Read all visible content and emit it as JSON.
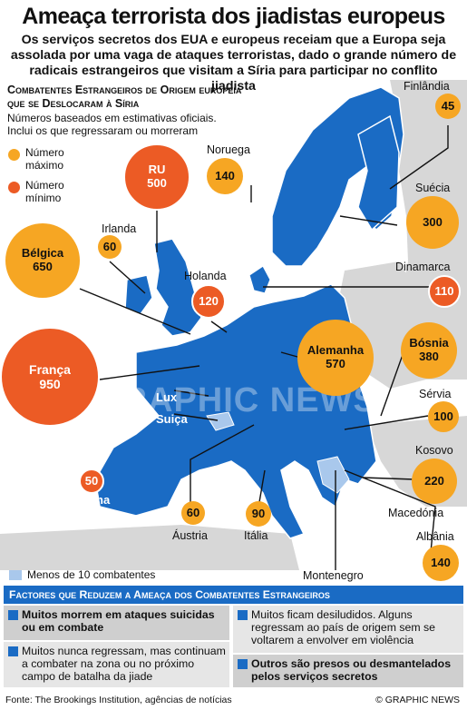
{
  "title": "Ameaça terrorista dos jiadistas europeus",
  "subtitle": "Os serviços secretos dos EUA e europeus receiam que a Europa seja assolada por uma vaga de ataques terroristas, dado o grande número de radicais estrangeiros que visitam a Síria para participar no conflito jiadista",
  "map": {
    "heading_line1": "Combatentes Estrangeiros de Origem europeia",
    "heading_line2": "que se Deslocaram à Síria",
    "note_line1": "Números baseados em estimativas oficiais.",
    "note_line2": "Inclui os que regressaram ou morreram",
    "legend": {
      "max_label": "Número máximo",
      "min_label": "Número mínimo",
      "less10_label": "Menos de 10 combatentes"
    },
    "colors": {
      "max": "#f6a623",
      "min": "#ec5b25",
      "land_eu": "#1a6bc4",
      "land_other": "#d7d7d7",
      "few": "#a9c8ec",
      "sea": "#ffffff"
    },
    "bubbles": [
      {
        "country": "Finlândia",
        "value": "45",
        "kind": "max"
      },
      {
        "country": "Noruega",
        "value": "140",
        "kind": "max"
      },
      {
        "country": "RU",
        "value": "500",
        "kind": "min"
      },
      {
        "country": "Suécia",
        "value": "300",
        "kind": "max"
      },
      {
        "country": "Irlanda",
        "value": "60",
        "kind": "max"
      },
      {
        "country": "Bélgica",
        "value": "650",
        "kind": "max"
      },
      {
        "country": "Holanda",
        "value": "120",
        "kind": "min"
      },
      {
        "country": "Dinamarca",
        "value": "110",
        "kind": "min"
      },
      {
        "country": "França",
        "value": "950",
        "kind": "min"
      },
      {
        "country": "Alemanha",
        "value": "570",
        "kind": "max"
      },
      {
        "country": "Bósnia",
        "value": "380",
        "kind": "max"
      },
      {
        "country": "Sérvia",
        "value": "100",
        "kind": "max"
      },
      {
        "country": "Kosovo",
        "value": "220",
        "kind": "max"
      },
      {
        "country": "Espanha",
        "value": "50",
        "kind": "min"
      },
      {
        "country": "Áustria",
        "value": "60",
        "kind": "max"
      },
      {
        "country": "Itália",
        "value": "90",
        "kind": "max"
      },
      {
        "country": "Albânia",
        "value": "140",
        "kind": "max"
      }
    ],
    "labels": {
      "lux": "Lux",
      "suica": "Suiça",
      "macedonia": "Macedónia",
      "montenegro": "Montenegro"
    },
    "watermark": "GRAPHIC NEWS"
  },
  "factors": {
    "heading": "Factores que Reduzem a Ameaça dos Combatentes Estrangeiros",
    "items": [
      "Muitos morrem em ataques suicidas ou em combate",
      "Muitos nunca regressam, mas continuam a combater na zona ou no próximo campo de batalha da jiade",
      "Muitos ficam desiludidos. Alguns regressam ao país de origem sem se voltarem a envolver em violência",
      "Outros são presos ou desmantelados pelos serviços secretos"
    ]
  },
  "footer": {
    "source": "Fonte: The Brookings Institution, agências de notícias",
    "copyright": "© GRAPHIC NEWS"
  }
}
